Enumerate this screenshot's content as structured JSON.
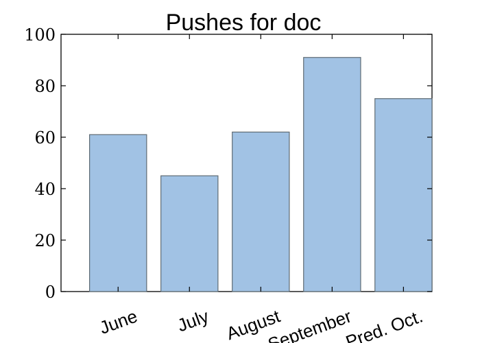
{
  "chart_data": {
    "type": "bar",
    "title": "Pushes for doc",
    "xlabel": "",
    "ylabel": "",
    "categories": [
      "June",
      "July",
      "August",
      "September",
      "Pred. Oct."
    ],
    "values": [
      61,
      45,
      62,
      91,
      75
    ],
    "ylim": [
      0,
      100
    ],
    "yticks": [
      0,
      20,
      40,
      60,
      80,
      100
    ],
    "grid": false,
    "bar_color": "#a1c2e4",
    "bar_edge_color": "#5f6b73",
    "xtick_rotation_deg": -20
  }
}
